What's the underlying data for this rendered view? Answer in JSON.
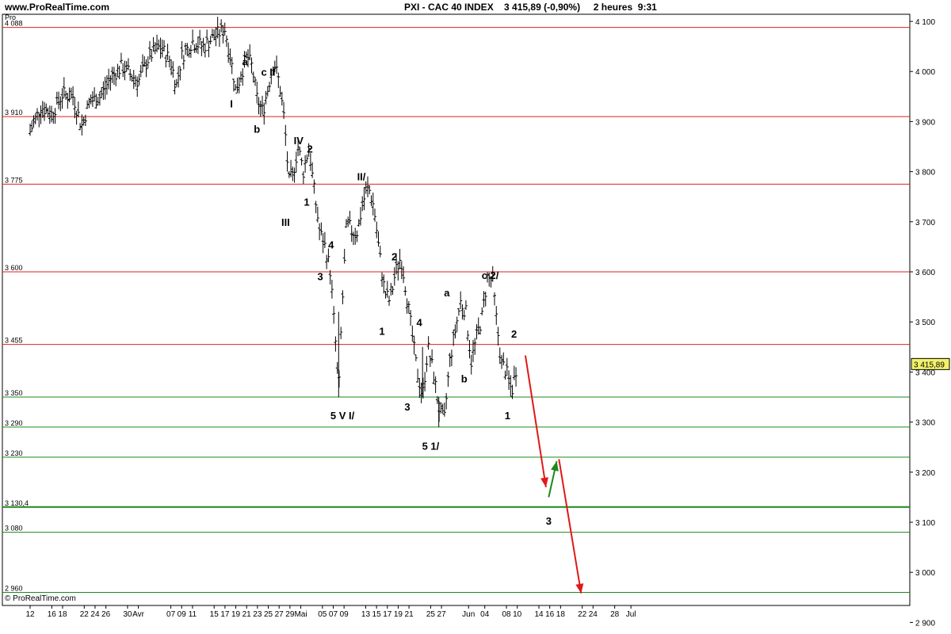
{
  "header": {
    "site": "www.ProRealTime.com",
    "title": "PXI - CAC 40 INDEX    3 415,89 (-0,90%)     2 heures  9:31"
  },
  "footer": {
    "copyright": "© ProRealTime.com"
  },
  "chart_data": {
    "type": "line",
    "title": "PXI - CAC 40 INDEX",
    "subtitle": "3 415,89 (-0,90%)  2 heures  9:31",
    "last_price": "3 415,89",
    "ylim": [
      2880,
      4110
    ],
    "y_ticks": [
      4100,
      4000,
      3900,
      3800,
      3700,
      3600,
      3500,
      3400,
      3300,
      3200,
      3100,
      3000,
      2900
    ],
    "y_tick_labels": [
      "4 100",
      "4 000",
      "3 900",
      "3 800",
      "3 700",
      "3 600",
      "3 500",
      "3 400",
      "3 300",
      "3 200",
      "3 100",
      "3 000",
      "2 900"
    ],
    "x_ticks": [
      {
        "d": 0,
        "label": "12"
      },
      {
        "d": 4,
        "label": "16"
      },
      {
        "d": 6,
        "label": "18"
      },
      {
        "d": 10,
        "label": "22"
      },
      {
        "d": 12,
        "label": "24"
      },
      {
        "d": 14,
        "label": "26"
      },
      {
        "d": 18,
        "label": "30"
      },
      {
        "d": 20,
        "label": "Avr"
      },
      {
        "d": 26,
        "label": "07"
      },
      {
        "d": 28,
        "label": "09"
      },
      {
        "d": 30,
        "label": "11"
      },
      {
        "d": 34,
        "label": "15"
      },
      {
        "d": 36,
        "label": "17"
      },
      {
        "d": 38,
        "label": "19"
      },
      {
        "d": 40,
        "label": "21"
      },
      {
        "d": 42,
        "label": "23"
      },
      {
        "d": 44,
        "label": "25"
      },
      {
        "d": 46,
        "label": "27"
      },
      {
        "d": 48,
        "label": "29"
      },
      {
        "d": 50,
        "label": "Mai"
      },
      {
        "d": 54,
        "label": "05"
      },
      {
        "d": 56,
        "label": "07"
      },
      {
        "d": 58,
        "label": "09"
      },
      {
        "d": 62,
        "label": "13"
      },
      {
        "d": 64,
        "label": "15"
      },
      {
        "d": 66,
        "label": "17"
      },
      {
        "d": 68,
        "label": "19"
      },
      {
        "d": 70,
        "label": "21"
      },
      {
        "d": 74,
        "label": "25"
      },
      {
        "d": 76,
        "label": "27"
      },
      {
        "d": 81,
        "label": "Jun"
      },
      {
        "d": 84,
        "label": "04"
      },
      {
        "d": 88,
        "label": "08"
      },
      {
        "d": 90,
        "label": "10"
      },
      {
        "d": 94,
        "label": "14"
      },
      {
        "d": 96,
        "label": "16"
      },
      {
        "d": 98,
        "label": "18"
      },
      {
        "d": 102,
        "label": "22"
      },
      {
        "d": 104,
        "label": "24"
      },
      {
        "d": 108,
        "label": "28"
      },
      {
        "d": 111,
        "label": "Jul"
      }
    ],
    "levels": [
      {
        "value": 4088,
        "label": "4 088",
        "color": "#dd2222"
      },
      {
        "value": 3910,
        "label": "3 910",
        "color": "#dd2222"
      },
      {
        "value": 3775,
        "label": "3 775",
        "color": "#dd2222"
      },
      {
        "value": 3600,
        "label": "3 600",
        "color": "#dd2222"
      },
      {
        "value": 3455,
        "label": "3 455",
        "color": "#dd2222"
      },
      {
        "value": 3350,
        "label": "3 350",
        "color": "#1a8a1a"
      },
      {
        "value": 3290,
        "label": "3 290",
        "color": "#1a8a1a"
      },
      {
        "value": 3230,
        "label": "3 230",
        "color": "#1a8a1a"
      },
      {
        "value": 3130.4,
        "label": "3 130,4",
        "color": "#1a8a1a"
      },
      {
        "value": 3080,
        "label": "3 080",
        "color": "#1a8a1a"
      },
      {
        "value": 2960,
        "label": "2 960",
        "color": "#1a8a1a"
      }
    ],
    "price_path": [
      [
        0,
        3880
      ],
      [
        2,
        3930
      ],
      [
        4,
        3915
      ],
      [
        6,
        3955
      ],
      [
        8,
        3950
      ],
      [
        9.5,
        3890
      ],
      [
        11,
        3940
      ],
      [
        13,
        3950
      ],
      [
        15,
        3990
      ],
      [
        17,
        4010
      ],
      [
        19,
        3990
      ],
      [
        20,
        3980
      ],
      [
        22,
        4030
      ],
      [
        24,
        4050
      ],
      [
        26,
        4020
      ],
      [
        27,
        3970
      ],
      [
        28,
        4030
      ],
      [
        30,
        4060
      ],
      [
        32,
        4050
      ],
      [
        34,
        4070
      ],
      [
        36,
        4085
      ],
      [
        37.5,
        4000
      ],
      [
        38,
        3960
      ],
      [
        40,
        4030
      ],
      [
        41,
        4010
      ],
      [
        42,
        3940
      ],
      [
        43,
        3920
      ],
      [
        44,
        3970
      ],
      [
        45,
        4020
      ],
      [
        46,
        3980
      ],
      [
        47,
        3900
      ],
      [
        47.8,
        3780
      ],
      [
        48.5,
        3790
      ],
      [
        49.5,
        3850
      ],
      [
        50.5,
        3800
      ],
      [
        51.5,
        3850
      ],
      [
        52.5,
        3760
      ],
      [
        53.5,
        3680
      ],
      [
        54.5,
        3650
      ],
      [
        55.5,
        3600
      ],
      [
        56,
        3520
      ],
      [
        56.5,
        3450
      ],
      [
        57,
        3350
      ],
      [
        57.5,
        3500
      ],
      [
        58.5,
        3700
      ],
      [
        59.5,
        3680
      ],
      [
        60.5,
        3680
      ],
      [
        61.5,
        3740
      ],
      [
        62.5,
        3770
      ],
      [
        63.5,
        3730
      ],
      [
        64.5,
        3640
      ],
      [
        65.5,
        3560
      ],
      [
        66.5,
        3540
      ],
      [
        67.5,
        3600
      ],
      [
        68.5,
        3630
      ],
      [
        69.5,
        3560
      ],
      [
        70.5,
        3480
      ],
      [
        71.5,
        3400
      ],
      [
        72.5,
        3350
      ],
      [
        73.5,
        3450
      ],
      [
        74.5,
        3400
      ],
      [
        75.5,
        3330
      ],
      [
        76.5,
        3300
      ],
      [
        77.5,
        3420
      ],
      [
        78.5,
        3480
      ],
      [
        79.5,
        3540
      ],
      [
        80.5,
        3520
      ],
      [
        81.5,
        3420
      ],
      [
        82.5,
        3470
      ],
      [
        83.5,
        3510
      ],
      [
        84.5,
        3590
      ],
      [
        85.5,
        3580
      ],
      [
        86,
        3520
      ],
      [
        87,
        3420
      ],
      [
        88,
        3400
      ],
      [
        89,
        3360
      ],
      [
        90,
        3420
      ]
    ],
    "wave_labels": [
      {
        "text": "a",
        "d": 39.7,
        "y": 4012
      },
      {
        "text": "c II",
        "d": 44,
        "y": 3992
      },
      {
        "text": "I",
        "d": 37.2,
        "y": 3928
      },
      {
        "text": "b",
        "d": 41.9,
        "y": 3878
      },
      {
        "text": "IV",
        "d": 49.6,
        "y": 3855
      },
      {
        "text": "2",
        "d": 51.7,
        "y": 3838
      },
      {
        "text": "1",
        "d": 51.1,
        "y": 3732
      },
      {
        "text": "III",
        "d": 47.2,
        "y": 3692
      },
      {
        "text": "II/",
        "d": 61.2,
        "y": 3783
      },
      {
        "text": "4",
        "d": 55.6,
        "y": 3647
      },
      {
        "text": "3",
        "d": 53.6,
        "y": 3583
      },
      {
        "text": "2",
        "d": 67.3,
        "y": 3623
      },
      {
        "text": "1",
        "d": 65,
        "y": 3474
      },
      {
        "text": "a",
        "d": 77,
        "y": 3551
      },
      {
        "text": "c 2/",
        "d": 85,
        "y": 3586
      },
      {
        "text": "4",
        "d": 71.9,
        "y": 3492
      },
      {
        "text": "2",
        "d": 89.4,
        "y": 3469
      },
      {
        "text": "b",
        "d": 80.2,
        "y": 3379
      },
      {
        "text": "3",
        "d": 69.7,
        "y": 3323
      },
      {
        "text": "5 V I/",
        "d": 57.7,
        "y": 3306
      },
      {
        "text": "1",
        "d": 88.2,
        "y": 3306
      },
      {
        "text": "5 1/",
        "d": 74,
        "y": 3245
      },
      {
        "text": "3",
        "d": 95.8,
        "y": 3095
      }
    ],
    "projection_arrows": [
      {
        "from": [
          91.5,
          3433
        ],
        "to": [
          95.3,
          3170
        ],
        "color": "#e01818"
      },
      {
        "from": [
          95.8,
          3150
        ],
        "to": [
          97.3,
          3222
        ],
        "color": "#1a8a1a"
      },
      {
        "from": [
          97.7,
          3226
        ],
        "to": [
          101.8,
          2958
        ],
        "color": "#e01818"
      }
    ]
  }
}
